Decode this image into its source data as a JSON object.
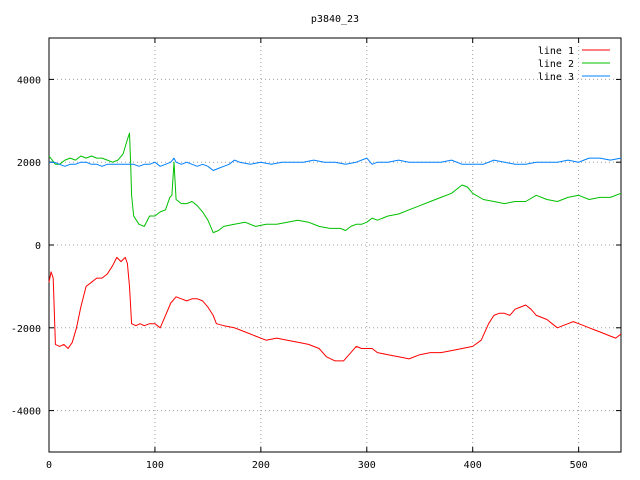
{
  "chart_data": {
    "type": "line",
    "title": "p3840_23",
    "xlabel": "",
    "ylabel": "",
    "xlim": [
      0,
      540
    ],
    "ylim": [
      -5000,
      5000
    ],
    "xticks": [
      0,
      100,
      200,
      300,
      400,
      500
    ],
    "yticks": [
      -4000,
      -2000,
      0,
      2000,
      4000
    ],
    "grid": true,
    "legend_position": "top-right",
    "series": [
      {
        "name": "line 1",
        "color": "#ff0000",
        "points": [
          [
            0,
            -900
          ],
          [
            2,
            -650
          ],
          [
            4,
            -800
          ],
          [
            6,
            -2400
          ],
          [
            10,
            -2450
          ],
          [
            14,
            -2400
          ],
          [
            18,
            -2500
          ],
          [
            22,
            -2350
          ],
          [
            26,
            -2000
          ],
          [
            30,
            -1500
          ],
          [
            35,
            -1000
          ],
          [
            40,
            -900
          ],
          [
            45,
            -800
          ],
          [
            50,
            -800
          ],
          [
            55,
            -700
          ],
          [
            60,
            -500
          ],
          [
            64,
            -300
          ],
          [
            68,
            -400
          ],
          [
            72,
            -300
          ],
          [
            74,
            -450
          ],
          [
            76,
            -1000
          ],
          [
            78,
            -1900
          ],
          [
            82,
            -1950
          ],
          [
            86,
            -1900
          ],
          [
            90,
            -1950
          ],
          [
            95,
            -1900
          ],
          [
            100,
            -1900
          ],
          [
            105,
            -2000
          ],
          [
            110,
            -1700
          ],
          [
            115,
            -1400
          ],
          [
            120,
            -1250
          ],
          [
            125,
            -1300
          ],
          [
            130,
            -1350
          ],
          [
            135,
            -1300
          ],
          [
            140,
            -1300
          ],
          [
            145,
            -1350
          ],
          [
            150,
            -1500
          ],
          [
            155,
            -1700
          ],
          [
            158,
            -1900
          ],
          [
            165,
            -1950
          ],
          [
            175,
            -2000
          ],
          [
            185,
            -2100
          ],
          [
            195,
            -2200
          ],
          [
            205,
            -2300
          ],
          [
            215,
            -2250
          ],
          [
            225,
            -2300
          ],
          [
            235,
            -2350
          ],
          [
            245,
            -2400
          ],
          [
            255,
            -2500
          ],
          [
            262,
            -2700
          ],
          [
            270,
            -2800
          ],
          [
            278,
            -2800
          ],
          [
            285,
            -2600
          ],
          [
            290,
            -2450
          ],
          [
            295,
            -2500
          ],
          [
            300,
            -2500
          ],
          [
            305,
            -2500
          ],
          [
            310,
            -2600
          ],
          [
            320,
            -2650
          ],
          [
            330,
            -2700
          ],
          [
            340,
            -2750
          ],
          [
            350,
            -2650
          ],
          [
            360,
            -2600
          ],
          [
            370,
            -2600
          ],
          [
            380,
            -2550
          ],
          [
            390,
            -2500
          ],
          [
            400,
            -2450
          ],
          [
            408,
            -2300
          ],
          [
            415,
            -1900
          ],
          [
            420,
            -1700
          ],
          [
            425,
            -1650
          ],
          [
            430,
            -1650
          ],
          [
            435,
            -1700
          ],
          [
            440,
            -1550
          ],
          [
            445,
            -1500
          ],
          [
            450,
            -1450
          ],
          [
            455,
            -1550
          ],
          [
            460,
            -1700
          ],
          [
            465,
            -1750
          ],
          [
            470,
            -1800
          ],
          [
            475,
            -1900
          ],
          [
            480,
            -2000
          ],
          [
            485,
            -1950
          ],
          [
            490,
            -1900
          ],
          [
            495,
            -1850
          ],
          [
            500,
            -1900
          ],
          [
            505,
            -1950
          ],
          [
            510,
            -2000
          ],
          [
            515,
            -2050
          ],
          [
            520,
            -2100
          ],
          [
            525,
            -2150
          ],
          [
            530,
            -2200
          ],
          [
            535,
            -2250
          ],
          [
            540,
            -2150
          ]
        ]
      },
      {
        "name": "line 2",
        "color": "#00c000",
        "points": [
          [
            0,
            2150
          ],
          [
            3,
            2050
          ],
          [
            6,
            1950
          ],
          [
            10,
            1950
          ],
          [
            15,
            2050
          ],
          [
            20,
            2100
          ],
          [
            25,
            2050
          ],
          [
            30,
            2150
          ],
          [
            35,
            2100
          ],
          [
            40,
            2150
          ],
          [
            45,
            2100
          ],
          [
            50,
            2100
          ],
          [
            55,
            2050
          ],
          [
            60,
            2000
          ],
          [
            65,
            2050
          ],
          [
            70,
            2200
          ],
          [
            74,
            2550
          ],
          [
            76,
            2700
          ],
          [
            77,
            2000
          ],
          [
            78,
            1200
          ],
          [
            80,
            700
          ],
          [
            85,
            500
          ],
          [
            90,
            450
          ],
          [
            95,
            700
          ],
          [
            100,
            700
          ],
          [
            105,
            800
          ],
          [
            110,
            850
          ],
          [
            114,
            1150
          ],
          [
            116,
            1200
          ],
          [
            118,
            2000
          ],
          [
            120,
            1100
          ],
          [
            125,
            1000
          ],
          [
            130,
            1000
          ],
          [
            135,
            1050
          ],
          [
            140,
            950
          ],
          [
            145,
            800
          ],
          [
            150,
            600
          ],
          [
            155,
            300
          ],
          [
            160,
            350
          ],
          [
            165,
            450
          ],
          [
            175,
            500
          ],
          [
            185,
            550
          ],
          [
            195,
            450
          ],
          [
            205,
            500
          ],
          [
            215,
            500
          ],
          [
            225,
            550
          ],
          [
            235,
            600
          ],
          [
            245,
            550
          ],
          [
            255,
            450
          ],
          [
            265,
            400
          ],
          [
            275,
            400
          ],
          [
            280,
            350
          ],
          [
            285,
            450
          ],
          [
            290,
            500
          ],
          [
            295,
            500
          ],
          [
            300,
            550
          ],
          [
            305,
            650
          ],
          [
            310,
            600
          ],
          [
            315,
            650
          ],
          [
            320,
            700
          ],
          [
            330,
            750
          ],
          [
            340,
            850
          ],
          [
            350,
            950
          ],
          [
            360,
            1050
          ],
          [
            370,
            1150
          ],
          [
            380,
            1250
          ],
          [
            385,
            1350
          ],
          [
            390,
            1450
          ],
          [
            395,
            1400
          ],
          [
            400,
            1250
          ],
          [
            410,
            1100
          ],
          [
            420,
            1050
          ],
          [
            430,
            1000
          ],
          [
            440,
            1050
          ],
          [
            450,
            1050
          ],
          [
            460,
            1200
          ],
          [
            470,
            1100
          ],
          [
            480,
            1050
          ],
          [
            490,
            1150
          ],
          [
            500,
            1200
          ],
          [
            510,
            1100
          ],
          [
            520,
            1150
          ],
          [
            530,
            1150
          ],
          [
            540,
            1250
          ]
        ]
      },
      {
        "name": "line 3",
        "color": "#0080ff",
        "points": [
          [
            0,
            2000
          ],
          [
            5,
            2000
          ],
          [
            10,
            1950
          ],
          [
            15,
            1900
          ],
          [
            20,
            1950
          ],
          [
            25,
            1950
          ],
          [
            30,
            2000
          ],
          [
            35,
            2000
          ],
          [
            40,
            1950
          ],
          [
            45,
            1950
          ],
          [
            50,
            1900
          ],
          [
            55,
            1950
          ],
          [
            60,
            1950
          ],
          [
            65,
            1950
          ],
          [
            70,
            1950
          ],
          [
            75,
            1950
          ],
          [
            80,
            1950
          ],
          [
            85,
            1900
          ],
          [
            90,
            1950
          ],
          [
            95,
            1950
          ],
          [
            100,
            2000
          ],
          [
            105,
            1900
          ],
          [
            110,
            1950
          ],
          [
            115,
            2000
          ],
          [
            118,
            2100
          ],
          [
            120,
            2000
          ],
          [
            125,
            1950
          ],
          [
            130,
            2000
          ],
          [
            135,
            1950
          ],
          [
            140,
            1900
          ],
          [
            145,
            1950
          ],
          [
            150,
            1900
          ],
          [
            155,
            1800
          ],
          [
            160,
            1850
          ],
          [
            165,
            1900
          ],
          [
            170,
            1950
          ],
          [
            175,
            2050
          ],
          [
            180,
            2000
          ],
          [
            190,
            1950
          ],
          [
            200,
            2000
          ],
          [
            210,
            1950
          ],
          [
            220,
            2000
          ],
          [
            230,
            2000
          ],
          [
            240,
            2000
          ],
          [
            250,
            2050
          ],
          [
            260,
            2000
          ],
          [
            270,
            2000
          ],
          [
            280,
            1950
          ],
          [
            290,
            2000
          ],
          [
            300,
            2100
          ],
          [
            305,
            1950
          ],
          [
            310,
            2000
          ],
          [
            320,
            2000
          ],
          [
            330,
            2050
          ],
          [
            340,
            2000
          ],
          [
            350,
            2000
          ],
          [
            360,
            2000
          ],
          [
            370,
            2000
          ],
          [
            380,
            2050
          ],
          [
            390,
            1950
          ],
          [
            400,
            1950
          ],
          [
            410,
            1950
          ],
          [
            420,
            2050
          ],
          [
            430,
            2000
          ],
          [
            440,
            1950
          ],
          [
            450,
            1950
          ],
          [
            460,
            2000
          ],
          [
            470,
            2000
          ],
          [
            480,
            2000
          ],
          [
            490,
            2050
          ],
          [
            500,
            2000
          ],
          [
            505,
            2050
          ],
          [
            510,
            2100
          ],
          [
            520,
            2100
          ],
          [
            530,
            2050
          ],
          [
            540,
            2100
          ]
        ]
      }
    ]
  }
}
